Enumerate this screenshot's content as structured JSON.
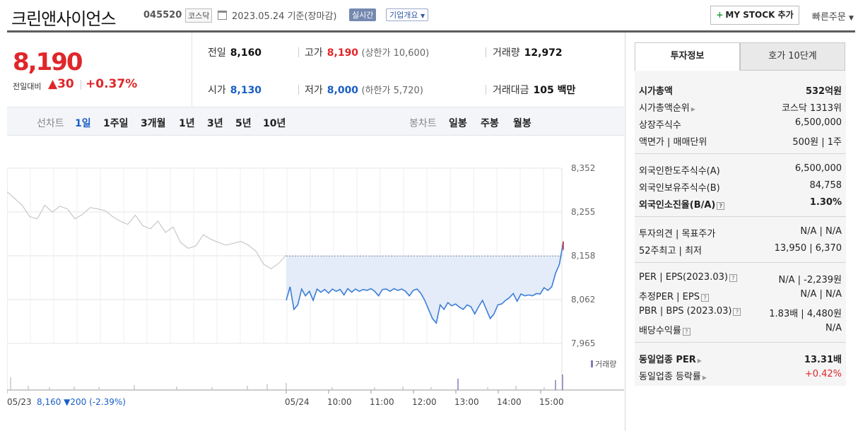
{
  "header": {
    "company": "크린앤사이언스",
    "code": "045520",
    "market": "코스닥",
    "date": "2023.05.24 기준(장마감)",
    "realtime": "실시간",
    "overview": "기업개요",
    "mystock": "MY STOCK 추가",
    "quick_order": "빠른주문"
  },
  "quote": {
    "price": "8,190",
    "diff_label": "전일대비",
    "diff": "▲30",
    "rate": "+0.37%",
    "prev_label": "전일",
    "prev": "8,160",
    "high_label": "고가",
    "high": "8,190",
    "upper": "(상한가 10,600)",
    "volume_label": "거래량",
    "volume": "12,972",
    "open_label": "시가",
    "open": "8,130",
    "low_label": "저가",
    "low": "8,000",
    "lower": "(하한가 5,720)",
    "amount_label": "거래대금",
    "amount": "105 백만"
  },
  "period_tabs": {
    "line_label": "선차트",
    "items": [
      "1일",
      "1주일",
      "3개월",
      "1년",
      "3년",
      "5년",
      "10년"
    ],
    "candle_label": "봉차트",
    "candle_items": [
      "일봉",
      "주봉",
      "월봉"
    ]
  },
  "chart_data": {
    "type": "line",
    "y_ticks": [
      "8,352",
      "8,255",
      "8,158",
      "8,062",
      "7,965"
    ],
    "ylim": [
      7965,
      8352
    ],
    "x_ticks": [
      "05/23",
      "05/24",
      "10:00",
      "11:00",
      "12:00",
      "13:00",
      "14:00",
      "15:00"
    ],
    "prev_close": 8158,
    "volume_label": "거래량",
    "prev_summary": {
      "date": "05/23",
      "close": "8,160",
      "change": "▼200 (-2.39%)"
    },
    "series": [
      {
        "values": [
          8300,
          8285,
          8270,
          8245,
          8240,
          8270,
          8255,
          8268,
          8262,
          8240,
          8250,
          8265,
          8262,
          8258,
          8245,
          8235,
          8228,
          8248,
          8225,
          8218,
          8235,
          8210,
          8222,
          8188,
          8175,
          8180,
          8205,
          8195,
          8188,
          8182,
          8186,
          8190,
          8182,
          8168,
          8140,
          8130,
          8142,
          8160
        ]
      },
      {
        "values": [
          8060,
          8090,
          8040,
          8050,
          8085,
          8070,
          8080,
          8060,
          8085,
          8078,
          8084,
          8076,
          8085,
          8080,
          8084,
          8072,
          8086,
          8078,
          8085,
          8080,
          8084,
          8082,
          8086,
          8080,
          8070,
          8084,
          8085,
          8080,
          8086,
          8082,
          8085,
          8080,
          8070,
          8082,
          8085,
          8075,
          8060,
          8040,
          8020,
          8010,
          8050,
          8040,
          8055,
          8048,
          8052,
          8045,
          8040,
          8050,
          8046,
          8030,
          8046,
          8060,
          8040,
          8020,
          8030,
          8050,
          8052,
          8060,
          8066,
          8075,
          8058,
          8074,
          8070,
          8072,
          8070,
          8075,
          8074,
          8088,
          8082,
          8090,
          8120,
          8140,
          8190
        ]
      }
    ]
  },
  "side": {
    "tab_active": "투자정보",
    "tab_other": "호가 10단계",
    "rows": [
      {
        "k": "시가총액",
        "v": "532억원"
      },
      {
        "k": "시가총액순위",
        "v": "코스닥 1313위"
      },
      {
        "k": "상장주식수",
        "v": "6,500,000"
      },
      {
        "k": "액면가 | 매매단위",
        "v": "500원 | 1주"
      },
      {
        "k": "외국인한도주식수(A)",
        "v": "6,500,000"
      },
      {
        "k": "외국인보유주식수(B)",
        "v": "84,758"
      },
      {
        "k": "외국인소진율(B/A)",
        "v": "1.30%"
      },
      {
        "k": "투자의견 | 목표주가",
        "v": "N/A | N/A"
      },
      {
        "k": "52주최고 | 최저",
        "v": "13,950 | 6,370"
      },
      {
        "k": "PER | EPS(2023.03)",
        "v": "N/A | -2,239원"
      },
      {
        "k": "추정PER | EPS",
        "v": "N/A | N/A"
      },
      {
        "k": "PBR | BPS (2023.03)",
        "v": "1.83배 | 4,480원"
      },
      {
        "k": "배당수익률",
        "v": "N/A"
      },
      {
        "k": "동일업종 PER",
        "v": "13.31배"
      },
      {
        "k": "동일업종 등락률",
        "v": "+0.42%"
      }
    ]
  },
  "colors": {
    "up": "#e0262a",
    "down": "#1a5fc4",
    "line_today": "#3b7dd8",
    "fill_today": "#e3ecf8",
    "line_prev": "#c8c8c8"
  }
}
